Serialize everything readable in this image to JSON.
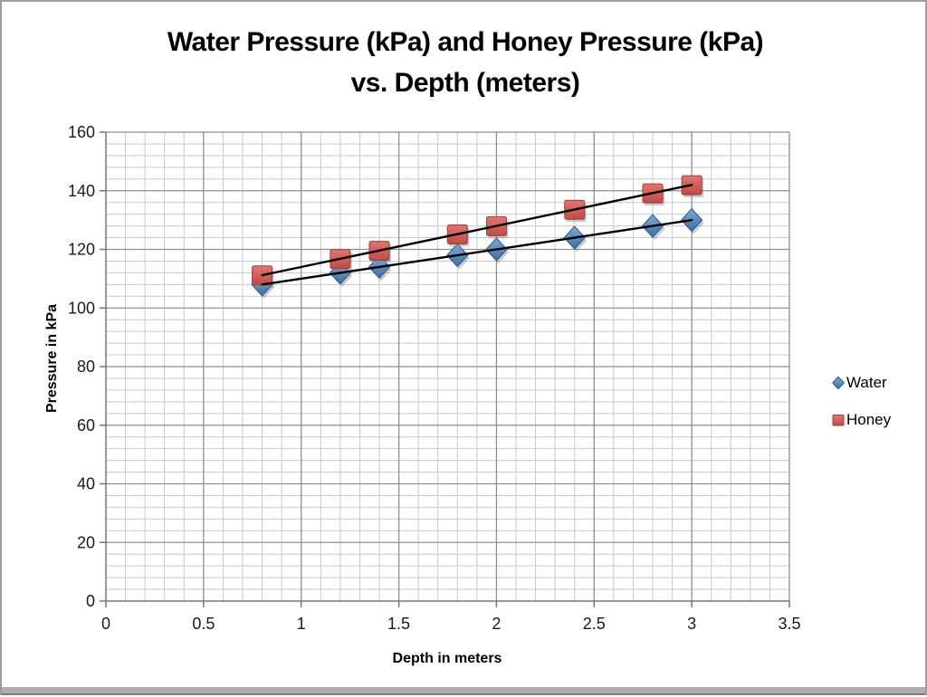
{
  "title": {
    "lines": [
      "Water Pressure (kPa) and Honey Pressure (kPa)",
      "vs. Depth (meters)"
    ]
  },
  "chart_data": {
    "type": "scatter",
    "title": "Water Pressure (kPa) and Honey Pressure (kPa) vs. Depth (meters)",
    "xlabel": "Depth in meters",
    "ylabel": "Pressure in kPa",
    "xlim": [
      0,
      3.5
    ],
    "ylim": [
      0,
      160
    ],
    "x_major": 0.5,
    "x_minor": 0.1,
    "y_major": 20,
    "y_minor": 4,
    "x_tick_values": [
      0,
      0.5,
      1,
      1.5,
      2,
      2.5,
      3,
      3.5
    ],
    "x_tick_labels": [
      "0",
      "0.5",
      "1",
      "1.5",
      "2",
      "2.5",
      "3",
      "3.5"
    ],
    "y_tick_values": [
      0,
      20,
      40,
      60,
      80,
      100,
      120,
      140,
      160
    ],
    "y_tick_labels": [
      "0",
      "20",
      "40",
      "60",
      "80",
      "100",
      "120",
      "140",
      "160"
    ],
    "grid": true,
    "legend_position": "right",
    "x": [
      0.8,
      1.2,
      1.4,
      1.8,
      2.0,
      2.4,
      2.8,
      3.0
    ],
    "series": [
      {
        "name": "Water",
        "marker": "diamond",
        "values": [
          108,
          112,
          114,
          118,
          120,
          124,
          128,
          130
        ],
        "trendline": true,
        "fill_top": "#7FA9D6",
        "fill_bottom": "#3D6EA1",
        "stroke": "#2D5986"
      },
      {
        "name": "Honey",
        "marker": "square",
        "values": [
          111.2,
          116.8,
          119.6,
          125.2,
          128,
          133.6,
          139.2,
          142
        ],
        "trendline": true,
        "fill_top": "#E2766F",
        "fill_bottom": "#BE4B48",
        "stroke": "#99403B"
      }
    ],
    "trendline_color": "#000000",
    "grid_major_color": "#8f8f8f",
    "grid_minor_color": "#c9c9c9",
    "axis_color": "#767676",
    "tick_label_color": "#1a1a1a",
    "marker_shadow_color": "#8e8e8e"
  }
}
